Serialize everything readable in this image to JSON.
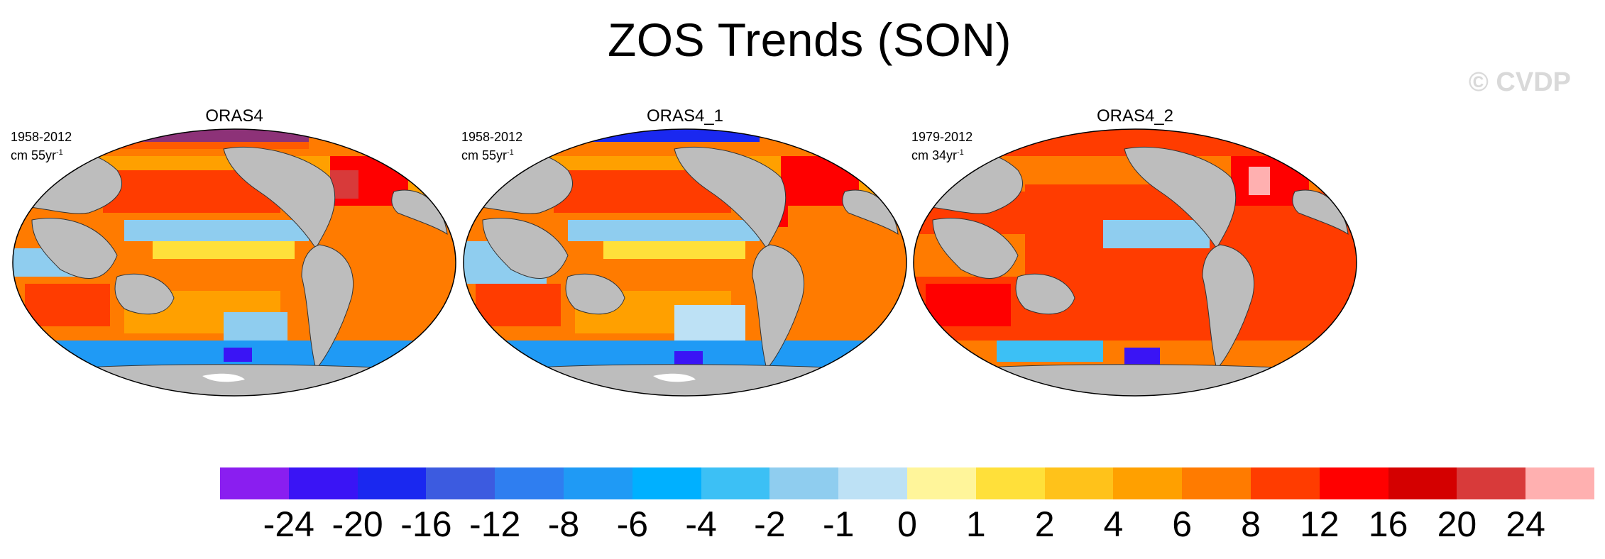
{
  "title": "ZOS Trends (SON)",
  "watermark": "© CVDP",
  "panels": [
    {
      "title": "ORAS4",
      "period": "1958-2012",
      "units": "cm 55yr",
      "units_exp": "-1"
    },
    {
      "title": "ORAS4_1",
      "period": "1958-2012",
      "units": "cm 55yr",
      "units_exp": "-1"
    },
    {
      "title": "ORAS4_2",
      "period": "1979-2012",
      "units": "cm 34yr",
      "units_exp": "-1"
    }
  ],
  "colorbar": {
    "labels": [
      "-24",
      "-20",
      "-16",
      "-12",
      "-8",
      "-6",
      "-4",
      "-2",
      "-1",
      "0",
      "1",
      "2",
      "4",
      "6",
      "8",
      "12",
      "16",
      "20",
      "24"
    ],
    "colors": [
      "#8a1ef0",
      "#3a14f5",
      "#1a28f0",
      "#3c5be0",
      "#2f7ef0",
      "#1f9af5",
      "#00b0ff",
      "#3cc0f5",
      "#8fcdef",
      "#bde1f5",
      "#fff59a",
      "#ffe03a",
      "#ffc21a",
      "#ffa000",
      "#ff7b00",
      "#ff3c00",
      "#ff0000",
      "#d40000",
      "#d83a3a",
      "#ffb0b0"
    ]
  },
  "land_color": "#bdbdbd"
}
